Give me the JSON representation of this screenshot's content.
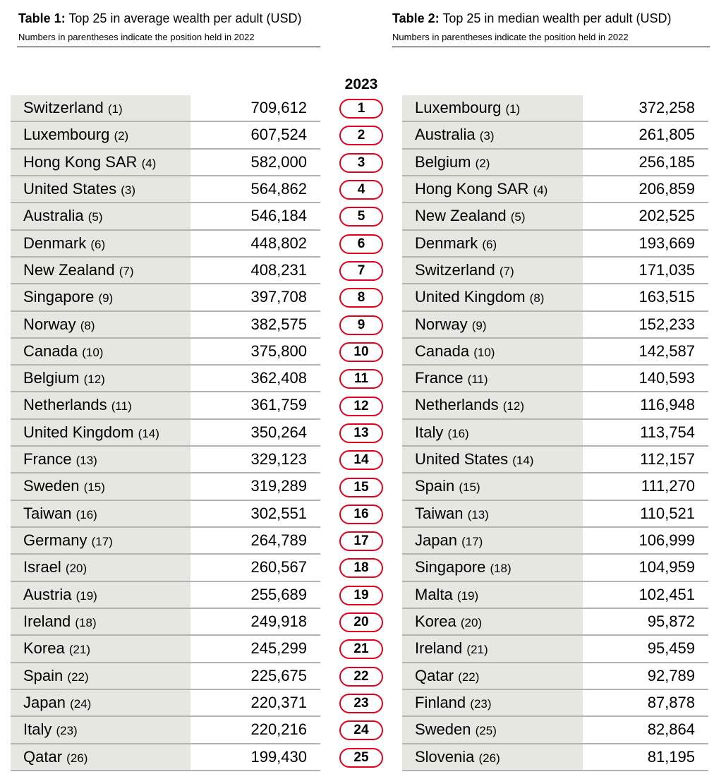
{
  "table1": {
    "title_bold": "Table 1:",
    "title_rest": " Top 25 in average wealth per adult (USD)",
    "subtitle": "Numbers in parentheses indicate the position held in 2022",
    "rows": [
      {
        "country": "Switzerland",
        "prev": "(1)",
        "value": "709,612"
      },
      {
        "country": "Luxembourg",
        "prev": "(2)",
        "value": "607,524"
      },
      {
        "country": "Hong Kong SAR",
        "prev": "(4)",
        "value": "582,000"
      },
      {
        "country": "United States",
        "prev": "(3)",
        "value": "564,862"
      },
      {
        "country": "Australia",
        "prev": "(5)",
        "value": "546,184"
      },
      {
        "country": "Denmark",
        "prev": "(6)",
        "value": "448,802"
      },
      {
        "country": "New Zealand",
        "prev": "(7)",
        "value": "408,231"
      },
      {
        "country": "Singapore",
        "prev": "(9)",
        "value": "397,708"
      },
      {
        "country": "Norway",
        "prev": "(8)",
        "value": "382,575"
      },
      {
        "country": "Canada",
        "prev": "(10)",
        "value": "375,800"
      },
      {
        "country": "Belgium",
        "prev": "(12)",
        "value": "362,408"
      },
      {
        "country": "Netherlands",
        "prev": "(11)",
        "value": "361,759"
      },
      {
        "country": "United Kingdom",
        "prev": "(14)",
        "value": "350,264"
      },
      {
        "country": "France",
        "prev": "(13)",
        "value": "329,123"
      },
      {
        "country": "Sweden",
        "prev": "(15)",
        "value": "319,289"
      },
      {
        "country": "Taiwan",
        "prev": "(16)",
        "value": "302,551"
      },
      {
        "country": "Germany",
        "prev": "(17)",
        "value": "264,789"
      },
      {
        "country": "Israel",
        "prev": "(20)",
        "value": "260,567"
      },
      {
        "country": "Austria",
        "prev": "(19)",
        "value": "255,689"
      },
      {
        "country": "Ireland",
        "prev": "(18)",
        "value": "249,918"
      },
      {
        "country": "Korea",
        "prev": "(21)",
        "value": "245,299"
      },
      {
        "country": "Spain",
        "prev": "(22)",
        "value": "225,675"
      },
      {
        "country": "Japan",
        "prev": "(24)",
        "value": "220,371"
      },
      {
        "country": "Italy",
        "prev": "(23)",
        "value": "220,216"
      },
      {
        "country": "Qatar",
        "prev": "(26)",
        "value": "199,430"
      }
    ]
  },
  "table2": {
    "title_bold": "Table 2:",
    "title_rest": " Top 25 in median wealth per adult (USD)",
    "subtitle": "Numbers in parentheses indicate the position held in 2022",
    "rows": [
      {
        "country": "Luxembourg",
        "prev": "(1)",
        "value": "372,258"
      },
      {
        "country": "Australia",
        "prev": "(3)",
        "value": "261,805"
      },
      {
        "country": "Belgium",
        "prev": "(2)",
        "value": "256,185"
      },
      {
        "country": "Hong Kong SAR",
        "prev": "(4)",
        "value": "206,859"
      },
      {
        "country": "New Zealand",
        "prev": "(5)",
        "value": "202,525"
      },
      {
        "country": "Denmark",
        "prev": "(6)",
        "value": "193,669"
      },
      {
        "country": "Switzerland",
        "prev": "(7)",
        "value": "171,035"
      },
      {
        "country": "United Kingdom",
        "prev": "(8)",
        "value": "163,515"
      },
      {
        "country": "Norway",
        "prev": "(9)",
        "value": "152,233"
      },
      {
        "country": "Canada",
        "prev": "(10)",
        "value": "142,587"
      },
      {
        "country": "France",
        "prev": "(11)",
        "value": "140,593"
      },
      {
        "country": "Netherlands",
        "prev": "(12)",
        "value": "116,948"
      },
      {
        "country": "Italy",
        "prev": "(16)",
        "value": "113,754"
      },
      {
        "country": "United States",
        "prev": "(14)",
        "value": "112,157"
      },
      {
        "country": "Spain",
        "prev": "(15)",
        "value": "111,270"
      },
      {
        "country": "Taiwan",
        "prev": "(13)",
        "value": "110,521"
      },
      {
        "country": "Japan",
        "prev": "(17)",
        "value": "106,999"
      },
      {
        "country": "Singapore",
        "prev": "(18)",
        "value": "104,959"
      },
      {
        "country": "Malta",
        "prev": "(19)",
        "value": "102,451"
      },
      {
        "country": "Korea",
        "prev": "(20)",
        "value": "95,872"
      },
      {
        "country": "Ireland",
        "prev": "(21)",
        "value": "95,459"
      },
      {
        "country": "Qatar",
        "prev": "(22)",
        "value": "92,789"
      },
      {
        "country": "Finland",
        "prev": "(23)",
        "value": "87,878"
      },
      {
        "country": "Sweden",
        "prev": "(25)",
        "value": "82,864"
      },
      {
        "country": "Slovenia",
        "prev": "(26)",
        "value": "81,195"
      }
    ]
  },
  "ranking": {
    "year": "2023",
    "ranks": [
      "1",
      "2",
      "3",
      "4",
      "5",
      "6",
      "7",
      "8",
      "9",
      "10",
      "11",
      "12",
      "13",
      "14",
      "15",
      "16",
      "17",
      "18",
      "19",
      "20",
      "21",
      "22",
      "23",
      "24",
      "25"
    ]
  },
  "colors": {
    "rank_border": "#e3001b",
    "name_cell_bg": "#e7e7e2",
    "row_rule": "#b3b3b3"
  }
}
